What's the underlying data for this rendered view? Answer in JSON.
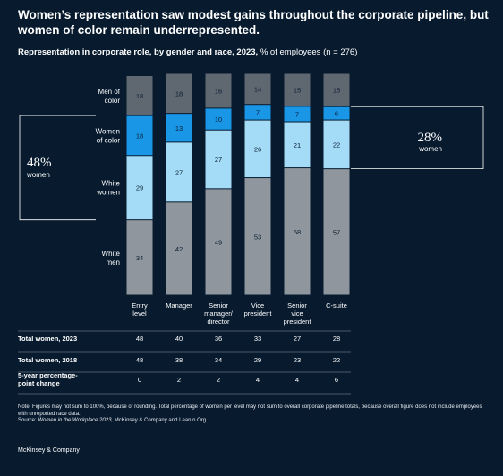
{
  "title": "Women’s representation saw modest gains throughout the corporate pipeline, but women of color remain underrepresented.",
  "subtitle_bold": "Representation in corporate role, by gender and race, 2023,",
  "subtitle_rest": " % of employees (n = 276)",
  "callouts": {
    "left_pct": "48%",
    "left_label": "women",
    "right_pct": "28%",
    "right_label": "women"
  },
  "colors": {
    "background": "#071a2e",
    "men_of_color": "#5f6770",
    "women_of_color": "#1a96e6",
    "white_women": "#a4dcf8",
    "white_men": "#8f969d"
  },
  "chart_data": {
    "type": "bar",
    "stacked": true,
    "categories": [
      [
        "Entry",
        "level"
      ],
      [
        "Manager"
      ],
      [
        "Senior",
        "manager/",
        "director"
      ],
      [
        "Vice",
        "president"
      ],
      [
        "Senior",
        "vice",
        "president"
      ],
      [
        "C-suite"
      ]
    ],
    "series": [
      {
        "name": "White men",
        "label_lines": [
          "White",
          "men"
        ],
        "color_key": "white_men",
        "values": [
          34,
          42,
          49,
          53,
          58,
          57
        ]
      },
      {
        "name": "White women",
        "label_lines": [
          "White",
          "women"
        ],
        "color_key": "white_women",
        "values": [
          29,
          27,
          27,
          26,
          21,
          22
        ]
      },
      {
        "name": "Women of color",
        "label_lines": [
          "Women",
          "of color"
        ],
        "color_key": "women_of_color",
        "values": [
          18,
          13,
          10,
          7,
          7,
          6
        ]
      },
      {
        "name": "Men of color",
        "label_lines": [
          "Men of",
          "color"
        ],
        "color_key": "men_of_color",
        "values": [
          18,
          18,
          16,
          14,
          15,
          15
        ]
      }
    ],
    "ylim": [
      0,
      100
    ]
  },
  "table": {
    "rows": [
      {
        "label": [
          "Total women, 2023"
        ],
        "values": [
          "48",
          "40",
          "36",
          "33",
          "27",
          "28"
        ]
      },
      {
        "label": [
          "Total women, 2018"
        ],
        "values": [
          "48",
          "38",
          "34",
          "29",
          "23",
          "22"
        ]
      },
      {
        "label": [
          "5-year percentage-",
          "point change"
        ],
        "values": [
          "0",
          "2",
          "2",
          "4",
          "4",
          "6"
        ]
      }
    ]
  },
  "note": {
    "text": "Note: Figures may not sum to 100%, because of rounding. Total percentage of women per level may not sum to overall corporate pipeline totals, because overall figure does not include employees with unreported race data.",
    "source_prefix": "Source: ",
    "source_italic": "Women in the Workplace 2023,",
    "source_rest": " McKinsey & Company and LeanIn.Org"
  },
  "brand": "McKinsey & Company"
}
